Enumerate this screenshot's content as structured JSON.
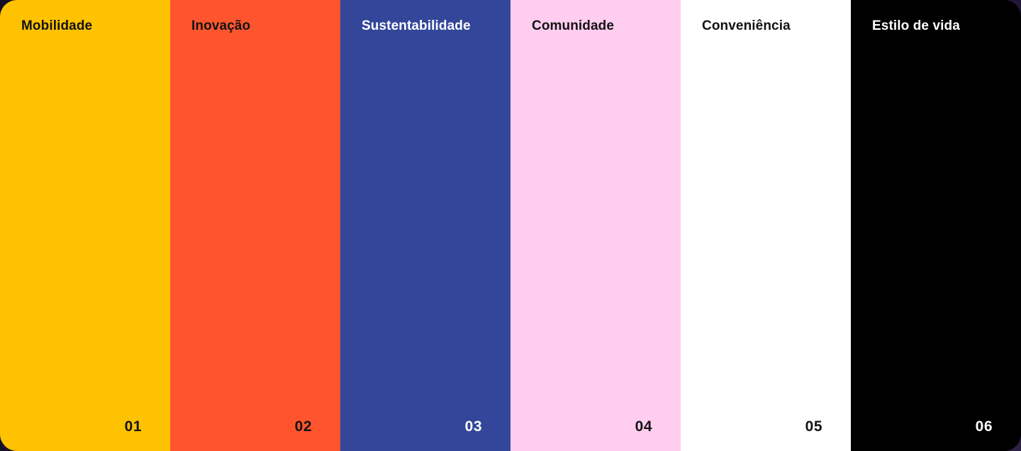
{
  "page": {
    "background_color": "#1a1130",
    "description": "Brand pillars palette strip"
  },
  "panels": [
    {
      "label": "Mobilidade",
      "number": "01",
      "bg": "#FFC200",
      "fg": "#131313"
    },
    {
      "label": "Inovação",
      "number": "02",
      "bg": "#FF552E",
      "fg": "#131313"
    },
    {
      "label": "Sustentabilidade",
      "number": "03",
      "bg": "#334699",
      "fg": "#FFFFFF"
    },
    {
      "label": "Comunidade",
      "number": "04",
      "bg": "#FFCDF0",
      "fg": "#131313"
    },
    {
      "label": "Conveniência",
      "number": "05",
      "bg": "#FFFFFF",
      "fg": "#131313"
    },
    {
      "label": "Estilo de vida",
      "number": "06",
      "bg": "#000000",
      "fg": "#FFFFFF"
    }
  ]
}
